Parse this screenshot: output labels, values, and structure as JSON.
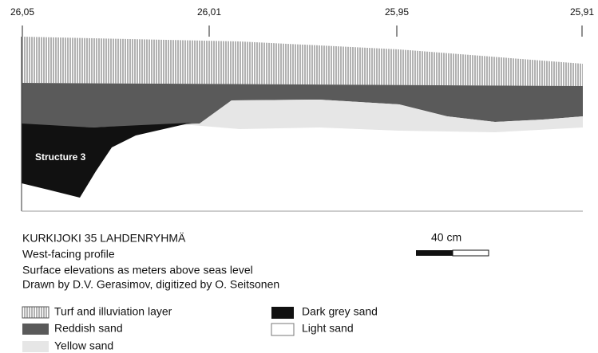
{
  "profile": {
    "elevations": [
      "26,05",
      "26,01",
      "25,95",
      "25,91"
    ],
    "structure_label": "Structure 3"
  },
  "caption": {
    "title": "KURKIJOKI 35 LAHDENRYHMÄ",
    "lines": [
      "West-facing profile",
      "Surface elevations as meters above seas level",
      "Drawn by D.V. Gerasimov, digitized by O. Seitsonen"
    ]
  },
  "scale": {
    "label": "40 cm"
  },
  "legend": {
    "items": [
      "Turf and illuviation layer",
      "Reddish sand",
      "Yellow sand",
      "Dark grey sand",
      "Light sand"
    ]
  }
}
